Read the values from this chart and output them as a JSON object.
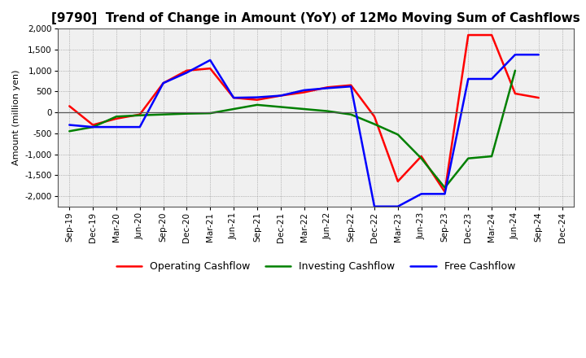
{
  "title": "[9790]  Trend of Change in Amount (YoY) of 12Mo Moving Sum of Cashflows",
  "ylabel": "Amount (million yen)",
  "xlabels": [
    "Sep-19",
    "Dec-19",
    "Mar-20",
    "Jun-20",
    "Sep-20",
    "Dec-20",
    "Mar-21",
    "Jun-21",
    "Sep-21",
    "Dec-21",
    "Mar-22",
    "Jun-22",
    "Sep-22",
    "Dec-22",
    "Mar-23",
    "Jun-23",
    "Sep-23",
    "Dec-23",
    "Mar-24",
    "Jun-24",
    "Sep-24",
    "Dec-24"
  ],
  "operating": [
    150,
    -300,
    -150,
    -50,
    700,
    1000,
    1050,
    350,
    300,
    400,
    480,
    600,
    650,
    -100,
    -1650,
    -1050,
    -1900,
    1850,
    1850,
    450,
    350,
    null
  ],
  "investing": [
    -450,
    -350,
    -100,
    -70,
    -50,
    -30,
    -20,
    80,
    180,
    130,
    80,
    30,
    -50,
    -280,
    -530,
    -1100,
    -1800,
    -1100,
    -1050,
    1000,
    null,
    null
  ],
  "free": [
    -300,
    -350,
    -350,
    -350,
    700,
    950,
    1250,
    350,
    360,
    400,
    530,
    580,
    620,
    -2250,
    -2250,
    -1950,
    -1950,
    800,
    800,
    1380,
    1380,
    null
  ],
  "operating_color": "#ff0000",
  "investing_color": "#008000",
  "free_color": "#0000ff",
  "ylim": [
    -2250,
    2000
  ],
  "yticks": [
    -2000,
    -1500,
    -1000,
    -500,
    0,
    500,
    1000,
    1500,
    2000
  ],
  "background_color": "#ffffff",
  "plot_bg_color": "#f0f0f0",
  "grid_color": "#888888",
  "title_fontsize": 11,
  "label_fontsize": 8,
  "tick_fontsize": 7.5,
  "legend_fontsize": 9,
  "line_width": 1.8
}
